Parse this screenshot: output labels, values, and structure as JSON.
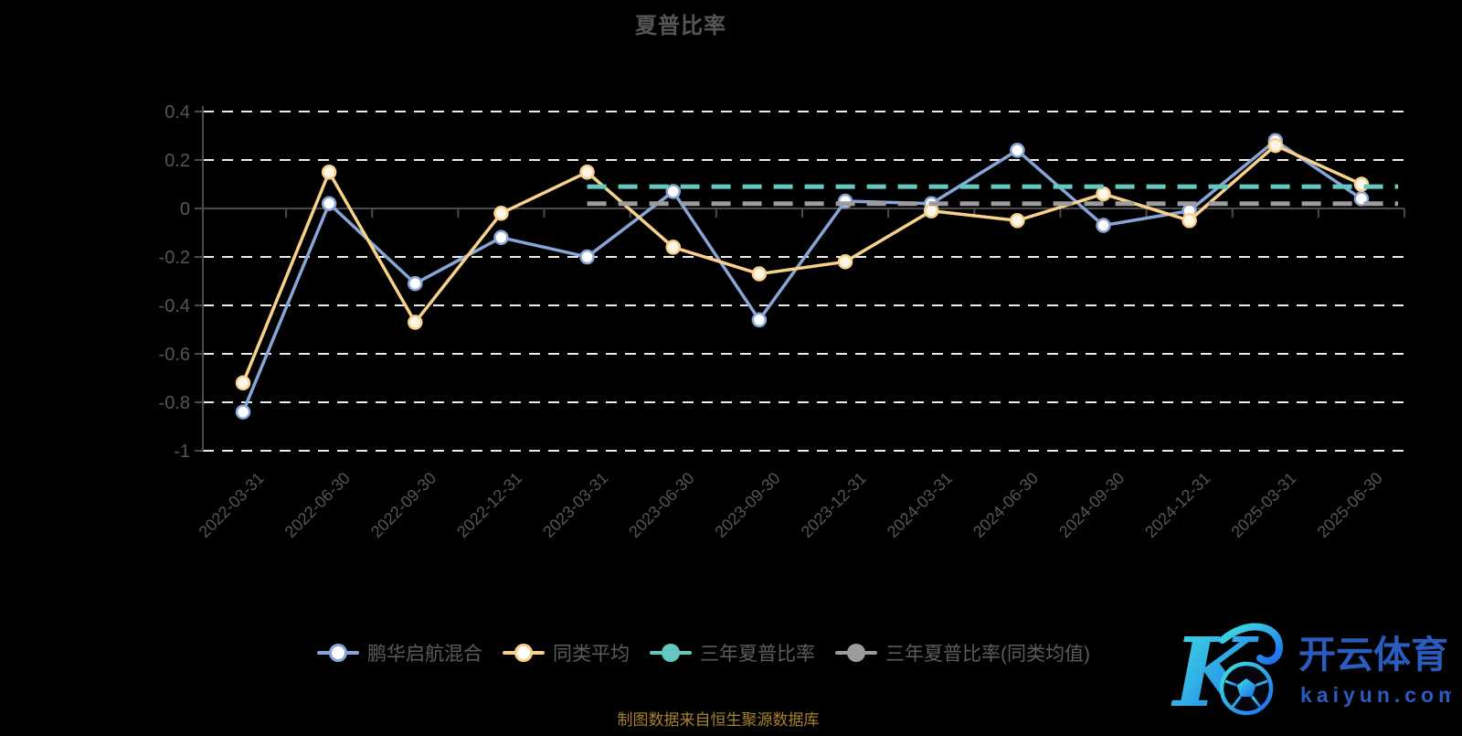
{
  "title": "夏普比率",
  "caption": "制图数据来自恒生聚源数据库",
  "watermark": {
    "brand": "开云体育",
    "domain": "kaiyun.com",
    "logo_letter": "K",
    "logo_gradient_start": "#3fe3de",
    "logo_gradient_end": "#1f6cf0",
    "text_color": "#2a5cbe"
  },
  "legend": [
    {
      "label": "鹏华启航混合",
      "color": "#87a6d7",
      "marker": "hollow"
    },
    {
      "label": "同类平均",
      "color": "#f8d18b",
      "marker": "hollow"
    },
    {
      "label": "三年夏普比率",
      "color": "#63c8bf",
      "marker": "filled"
    },
    {
      "label": "三年夏普比率(同类均值)",
      "color": "#9c9c9c",
      "marker": "filled"
    }
  ],
  "chart_data": {
    "type": "line",
    "title": "夏普比率",
    "categories": [
      "2022-03-31",
      "2022-06-30",
      "2022-09-30",
      "2022-12-31",
      "2023-03-31",
      "2023-06-30",
      "2023-09-30",
      "2023-12-31",
      "2024-03-31",
      "2024-06-30",
      "2024-09-30",
      "2024-12-31",
      "2025-03-31",
      "2025-06-30"
    ],
    "series": [
      {
        "name": "鹏华启航混合",
        "color": "#87a6d7",
        "style": "solid",
        "marker_fill": "#ffffff",
        "values": [
          -0.84,
          0.02,
          -0.31,
          -0.12,
          -0.2,
          0.07,
          -0.46,
          0.03,
          0.02,
          0.24,
          -0.07,
          -0.01,
          0.28,
          0.04
        ]
      },
      {
        "name": "同类平均",
        "color": "#f8d18b",
        "style": "solid",
        "marker_fill": "#fdf6e8",
        "values": [
          -0.72,
          0.15,
          -0.47,
          -0.02,
          0.15,
          -0.16,
          -0.27,
          -0.22,
          -0.01,
          -0.05,
          0.06,
          -0.05,
          0.26,
          0.1
        ]
      },
      {
        "name": "三年夏普比率",
        "color": "#63c8bf",
        "style": "dashed",
        "values": [
          null,
          null,
          null,
          null,
          0.09,
          0.09,
          0.09,
          0.09,
          0.09,
          0.09,
          0.09,
          0.09,
          0.09,
          0.09
        ]
      },
      {
        "name": "三年夏普比率(同类均值)",
        "color": "#9c9c9c",
        "style": "dashed",
        "values": [
          null,
          null,
          null,
          null,
          0.02,
          0.02,
          0.02,
          0.02,
          0.02,
          0.02,
          0.02,
          0.02,
          0.02,
          0.02
        ]
      }
    ],
    "yticks": [
      0.4,
      0.2,
      0,
      -0.2,
      -0.4,
      -0.6,
      -0.8,
      -1
    ],
    "ytick_labels": [
      "0.4",
      "0.2",
      "0",
      "-0.2",
      "-0.4",
      "-0.6",
      "-0.8",
      "-1"
    ],
    "ylim": [
      -1,
      0.4
    ],
    "xlabel": "",
    "ylabel": "",
    "grid": "horizontal-dashed-white",
    "zero_axis": "solid-gray",
    "legend_position": "bottom",
    "background": "#000000"
  }
}
